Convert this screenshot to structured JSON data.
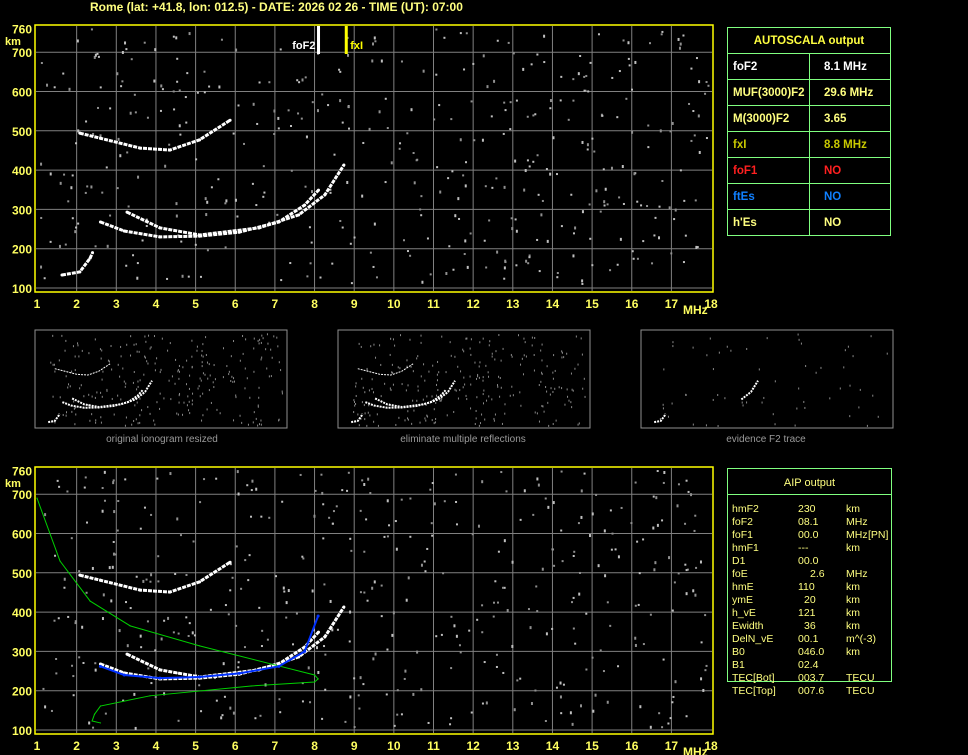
{
  "title": "Rome (lat: +41.8, lon: 012.5) - DATE: 2026 02 26 - TIME (UT): 07:00",
  "colors": {
    "axis": "#ffff40",
    "grid": "#808080",
    "trace": "#ffffff",
    "profile": "#00d000",
    "fitted": "#0030ff",
    "foF1": "#ff2020",
    "ftEs": "#1080ff",
    "fxI": "#c8c800"
  },
  "autoscala": {
    "header": "AUTOSCALA output",
    "rows": [
      {
        "label": "foF2",
        "value": "8.1 MHz",
        "color": "#ffffff"
      },
      {
        "label": "MUF(3000)F2",
        "value": "29.6 MHz",
        "color": "#ffff80"
      },
      {
        "label": "M(3000)F2",
        "value": "3.65",
        "color": "#ffff80"
      },
      {
        "label": "fxI",
        "value": "8.8 MHz",
        "color": "#c8c800"
      },
      {
        "label": "foF1",
        "value": "NO",
        "color": "#ff2020"
      },
      {
        "label": "ftEs",
        "value": "NO",
        "color": "#1080ff"
      },
      {
        "label": "h'Es",
        "value": "NO",
        "color": "#ffff80"
      }
    ]
  },
  "aip": {
    "header": "AIP output",
    "rows": [
      {
        "name": "hmF2",
        "value": "230",
        "unit": "km",
        "extra": ""
      },
      {
        "name": "foF2",
        "value": "08.1",
        "unit": "MHz",
        "extra": ""
      },
      {
        "name": "foF1",
        "value": "00.0",
        "unit": "MHz",
        "extra": "[PN]"
      },
      {
        "name": "hmF1",
        "value": "---",
        "unit": "km",
        "extra": ""
      },
      {
        "name": "D1",
        "value": "00.0",
        "unit": "",
        "extra": ""
      },
      {
        "name": "foE",
        "value": "2.6",
        "unit": "MHz",
        "extra": ""
      },
      {
        "name": "hmE",
        "value": "110",
        "unit": "km",
        "extra": ""
      },
      {
        "name": "ymE",
        "value": "20",
        "unit": "km",
        "extra": ""
      },
      {
        "name": "h_vE",
        "value": "121",
        "unit": "km",
        "extra": ""
      },
      {
        "name": "Ewidth",
        "value": "36",
        "unit": "km",
        "extra": ""
      },
      {
        "name": "DelN_vE",
        "value": "00.1",
        "unit": "m^(-3)",
        "extra": ""
      },
      {
        "name": "B0",
        "value": "046.0",
        "unit": "km",
        "extra": ""
      },
      {
        "name": "B1",
        "value": "02.4",
        "unit": "",
        "extra": ""
      },
      {
        "name": "TEC[Bot]",
        "value": "003.7",
        "unit": "TECU",
        "extra": ""
      },
      {
        "name": "TEC[Top]",
        "value": "007.6",
        "unit": "TECU",
        "extra": ""
      }
    ]
  },
  "thumbnails": [
    "original ionogram resized",
    "eliminate multiple reflections",
    "evidence F2 trace"
  ],
  "chart_data": [
    {
      "type": "scatter",
      "title": "",
      "xlabel": "MHz",
      "ylabel": "km",
      "xlim": [
        1,
        18
      ],
      "ylim": [
        100,
        760
      ],
      "xticks": [
        "1",
        "2",
        "3",
        "4",
        "5",
        "6",
        "7",
        "8",
        "9",
        "10",
        "11",
        "12",
        "13",
        "14",
        "15",
        "16",
        "17",
        "18"
      ],
      "yticks": [
        "100",
        "200",
        "300",
        "400",
        "500",
        "600",
        "700",
        "760"
      ],
      "grid": true,
      "markers": [
        {
          "label": "foF2",
          "x": 8.1,
          "color": "#ffffff"
        },
        {
          "label": "fxI",
          "x": 8.8,
          "color": "#ffff00"
        }
      ],
      "series": [
        {
          "points": [
            [
              2.6,
              268
            ],
            [
              3.2,
              245
            ],
            [
              4.1,
              230
            ],
            [
              5.1,
              232
            ],
            [
              6.1,
              242
            ],
            [
              7.1,
              268
            ],
            [
              7.75,
              311
            ],
            [
              8.1,
              349
            ]
          ]
        },
        {
          "points": [
            [
              3.27,
              293
            ],
            [
              4.1,
              253
            ],
            [
              5.1,
              235
            ],
            [
              6.6,
              253
            ],
            [
              7.6,
              286
            ],
            [
              8.26,
              337
            ],
            [
              8.74,
              413
            ]
          ]
        },
        {
          "points": [
            [
              1.63,
              133
            ],
            [
              2.08,
              141
            ],
            [
              2.34,
              176
            ],
            [
              2.4,
              190
            ]
          ]
        },
        {
          "points": [
            [
              2.08,
              494
            ],
            [
              2.6,
              481
            ],
            [
              3.6,
              456
            ],
            [
              4.35,
              451
            ],
            [
              5.1,
              477
            ],
            [
              5.87,
              527
            ]
          ]
        }
      ]
    },
    {
      "type": "line",
      "title": "",
      "xlabel": "MHz",
      "ylabel": "km",
      "xlim": [
        1,
        18
      ],
      "ylim": [
        100,
        760
      ],
      "xticks": [
        "1",
        "2",
        "3",
        "4",
        "5",
        "6",
        "7",
        "8",
        "9",
        "10",
        "11",
        "12",
        "13",
        "14",
        "15",
        "16",
        "17",
        "18"
      ],
      "yticks": [
        "100",
        "200",
        "300",
        "400",
        "500",
        "600",
        "700",
        "760"
      ],
      "grid": true,
      "series": [
        {
          "kind": "trace",
          "points": [
            [
              2.6,
              268
            ],
            [
              3.2,
              245
            ],
            [
              4.1,
              230
            ],
            [
              5.1,
              232
            ],
            [
              6.1,
              242
            ],
            [
              7.1,
              268
            ],
            [
              7.75,
              311
            ],
            [
              8.1,
              349
            ]
          ]
        },
        {
          "kind": "trace",
          "points": [
            [
              3.27,
              293
            ],
            [
              4.1,
              253
            ],
            [
              5.1,
              235
            ],
            [
              6.6,
              253
            ],
            [
              7.6,
              286
            ],
            [
              8.26,
              337
            ],
            [
              8.74,
              413
            ]
          ]
        },
        {
          "kind": "trace",
          "points": [
            [
              2.08,
              494
            ],
            [
              2.6,
              481
            ],
            [
              3.6,
              456
            ],
            [
              4.35,
              451
            ],
            [
              5.1,
              477
            ],
            [
              5.87,
              527
            ]
          ]
        },
        {
          "kind": "profile",
          "points": [
            [
              1,
              690
            ],
            [
              1.58,
              530
            ],
            [
              2.34,
              428
            ],
            [
              3.35,
              365
            ],
            [
              5.1,
              314
            ],
            [
              7.1,
              263
            ],
            [
              8.0,
              240
            ],
            [
              8.09,
              230
            ],
            [
              8.0,
              222
            ],
            [
              6.4,
              212
            ],
            [
              3.85,
              187
            ],
            [
              2.6,
              161
            ],
            [
              2.45,
              140
            ],
            [
              2.39,
              123
            ],
            [
              2.6,
              118
            ]
          ]
        },
        {
          "kind": "fitted",
          "points": [
            [
              2.6,
              262
            ],
            [
              3.2,
              240
            ],
            [
              4.1,
              232
            ],
            [
              5.1,
              235
            ],
            [
              6.1,
              244
            ],
            [
              7.1,
              262
            ],
            [
              7.75,
              300
            ],
            [
              8.09,
              390
            ]
          ]
        }
      ]
    }
  ]
}
